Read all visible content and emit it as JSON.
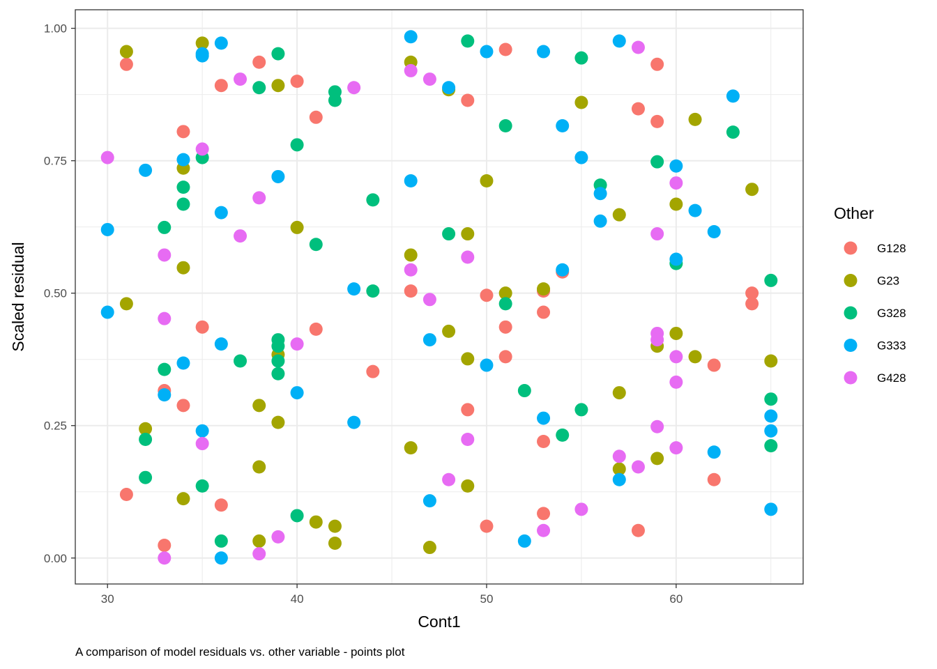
{
  "chart_data": {
    "type": "scatter",
    "title": "",
    "xlabel": "Cont1",
    "ylabel": "Scaled residual",
    "caption": "A comparison of model residuals vs. other variable - points plot",
    "xlim": [
      28.3,
      66.7
    ],
    "ylim": [
      -0.049,
      1.035
    ],
    "x_ticks": [
      30,
      40,
      50,
      60
    ],
    "x_tick_labels": [
      "30",
      "40",
      "50",
      "60"
    ],
    "x_minor_ticks": [
      35,
      45,
      55,
      65
    ],
    "y_ticks": [
      0,
      0.25,
      0.5,
      0.75,
      1.0
    ],
    "y_tick_labels": [
      "0.00",
      "0.25",
      "0.50",
      "0.75",
      "1.00"
    ],
    "y_minor_ticks": [
      0.125,
      0.375,
      0.625,
      0.875
    ],
    "grid": true,
    "legend": {
      "title": "Other",
      "position": "right"
    },
    "series": [
      {
        "name": "G128",
        "color": "#F8766D",
        "points": [
          [
            31,
            0.932
          ],
          [
            31,
            0.12
          ],
          [
            33,
            0.316
          ],
          [
            33,
            0.024
          ],
          [
            34,
            0.805
          ],
          [
            34,
            0.288
          ],
          [
            35,
            0.436
          ],
          [
            36,
            0.892
          ],
          [
            36,
            0.1
          ],
          [
            38,
            0.936
          ],
          [
            40,
            0.9
          ],
          [
            41,
            0.832
          ],
          [
            41,
            0.432
          ],
          [
            44,
            0.352
          ],
          [
            46,
            0.504
          ],
          [
            49,
            0.864
          ],
          [
            49,
            0.28
          ],
          [
            50,
            0.496
          ],
          [
            50,
            0.06
          ],
          [
            51,
            0.96
          ],
          [
            51,
            0.436
          ],
          [
            51,
            0.38
          ],
          [
            53,
            0.504
          ],
          [
            53,
            0.464
          ],
          [
            53,
            0.22
          ],
          [
            53,
            0.084
          ],
          [
            54,
            0.54
          ],
          [
            58,
            0.848
          ],
          [
            58,
            0.052
          ],
          [
            59,
            0.932
          ],
          [
            59,
            0.824
          ],
          [
            62,
            0.364
          ],
          [
            62,
            0.148
          ],
          [
            64,
            0.5
          ],
          [
            64,
            0.48
          ]
        ]
      },
      {
        "name": "G23",
        "color": "#A3A500",
        "points": [
          [
            31,
            0.956
          ],
          [
            31,
            0.48
          ],
          [
            32,
            0.244
          ],
          [
            34,
            0.736
          ],
          [
            34,
            0.548
          ],
          [
            34,
            0.112
          ],
          [
            35,
            0.972
          ],
          [
            38,
            0.288
          ],
          [
            38,
            0.172
          ],
          [
            38,
            0.032
          ],
          [
            39,
            0.892
          ],
          [
            39,
            0.384
          ],
          [
            39,
            0.256
          ],
          [
            40,
            0.624
          ],
          [
            41,
            0.068
          ],
          [
            42,
            0.06
          ],
          [
            42,
            0.028
          ],
          [
            46,
            0.936
          ],
          [
            46,
            0.572
          ],
          [
            46,
            0.208
          ],
          [
            47,
            0.02
          ],
          [
            48,
            0.884
          ],
          [
            48,
            0.428
          ],
          [
            49,
            0.612
          ],
          [
            49,
            0.376
          ],
          [
            49,
            0.136
          ],
          [
            50,
            0.712
          ],
          [
            51,
            0.5
          ],
          [
            53,
            0.508
          ],
          [
            55,
            0.86
          ],
          [
            57,
            0.648
          ],
          [
            57,
            0.312
          ],
          [
            57,
            0.168
          ],
          [
            59,
            0.4
          ],
          [
            59,
            0.188
          ],
          [
            60,
            0.668
          ],
          [
            60,
            0.424
          ],
          [
            61,
            0.828
          ],
          [
            61,
            0.38
          ],
          [
            64,
            0.696
          ],
          [
            65,
            0.372
          ]
        ]
      },
      {
        "name": "G328",
        "color": "#00BF7D",
        "points": [
          [
            32,
            0.224
          ],
          [
            32,
            0.152
          ],
          [
            33,
            0.624
          ],
          [
            33,
            0.356
          ],
          [
            34,
            0.7
          ],
          [
            34,
            0.668
          ],
          [
            35,
            0.756
          ],
          [
            35,
            0.136
          ],
          [
            36,
            0.032
          ],
          [
            37,
            0.372
          ],
          [
            38,
            0.888
          ],
          [
            39,
            0.952
          ],
          [
            39,
            0.412
          ],
          [
            39,
            0.4
          ],
          [
            39,
            0.372
          ],
          [
            39,
            0.348
          ],
          [
            40,
            0.78
          ],
          [
            40,
            0.08
          ],
          [
            41,
            0.592
          ],
          [
            42,
            0.88
          ],
          [
            42,
            0.864
          ],
          [
            44,
            0.676
          ],
          [
            44,
            0.504
          ],
          [
            48,
            0.612
          ],
          [
            49,
            0.976
          ],
          [
            51,
            0.816
          ],
          [
            51,
            0.48
          ],
          [
            52,
            0.316
          ],
          [
            54,
            0.232
          ],
          [
            55,
            0.944
          ],
          [
            55,
            0.28
          ],
          [
            56,
            0.704
          ],
          [
            59,
            0.748
          ],
          [
            60,
            0.556
          ],
          [
            63,
            0.804
          ],
          [
            65,
            0.524
          ],
          [
            65,
            0.3
          ],
          [
            65,
            0.212
          ]
        ]
      },
      {
        "name": "G333",
        "color": "#00B0F6",
        "points": [
          [
            30,
            0.62
          ],
          [
            30,
            0.464
          ],
          [
            32,
            0.732
          ],
          [
            33,
            0.308
          ],
          [
            34,
            0.752
          ],
          [
            34,
            0.368
          ],
          [
            35,
            0.952
          ],
          [
            35,
            0.948
          ],
          [
            35,
            0.24
          ],
          [
            36,
            0.972
          ],
          [
            36,
            0.652
          ],
          [
            36,
            0.404
          ],
          [
            36,
            0.0
          ],
          [
            39,
            0.72
          ],
          [
            40,
            0.312
          ],
          [
            43,
            0.508
          ],
          [
            43,
            0.256
          ],
          [
            46,
            0.984
          ],
          [
            46,
            0.712
          ],
          [
            47,
            0.412
          ],
          [
            47,
            0.108
          ],
          [
            48,
            0.888
          ],
          [
            50,
            0.956
          ],
          [
            50,
            0.364
          ],
          [
            52,
            0.032
          ],
          [
            53,
            0.956
          ],
          [
            53,
            0.264
          ],
          [
            54,
            0.816
          ],
          [
            54,
            0.544
          ],
          [
            55,
            0.756
          ],
          [
            56,
            0.688
          ],
          [
            56,
            0.636
          ],
          [
            57,
            0.976
          ],
          [
            57,
            0.148
          ],
          [
            60,
            0.74
          ],
          [
            60,
            0.564
          ],
          [
            61,
            0.656
          ],
          [
            62,
            0.616
          ],
          [
            62,
            0.2
          ],
          [
            63,
            0.872
          ],
          [
            65,
            0.268
          ],
          [
            65,
            0.24
          ],
          [
            65,
            0.092
          ]
        ]
      },
      {
        "name": "G428",
        "color": "#E76BF3",
        "points": [
          [
            30,
            0.756
          ],
          [
            33,
            0.572
          ],
          [
            33,
            0.452
          ],
          [
            33,
            0.0
          ],
          [
            35,
            0.772
          ],
          [
            35,
            0.216
          ],
          [
            37,
            0.904
          ],
          [
            37,
            0.608
          ],
          [
            38,
            0.68
          ],
          [
            38,
            0.008
          ],
          [
            39,
            0.04
          ],
          [
            40,
            0.404
          ],
          [
            43,
            0.888
          ],
          [
            46,
            0.92
          ],
          [
            46,
            0.544
          ],
          [
            47,
            0.904
          ],
          [
            47,
            0.488
          ],
          [
            48,
            0.148
          ],
          [
            49,
            0.568
          ],
          [
            49,
            0.224
          ],
          [
            53,
            0.052
          ],
          [
            55,
            0.092
          ],
          [
            57,
            0.192
          ],
          [
            58,
            0.964
          ],
          [
            58,
            0.172
          ],
          [
            59,
            0.612
          ],
          [
            59,
            0.424
          ],
          [
            59,
            0.412
          ],
          [
            59,
            0.248
          ],
          [
            60,
            0.708
          ],
          [
            60,
            0.38
          ],
          [
            60,
            0.332
          ],
          [
            60,
            0.208
          ]
        ]
      }
    ]
  }
}
